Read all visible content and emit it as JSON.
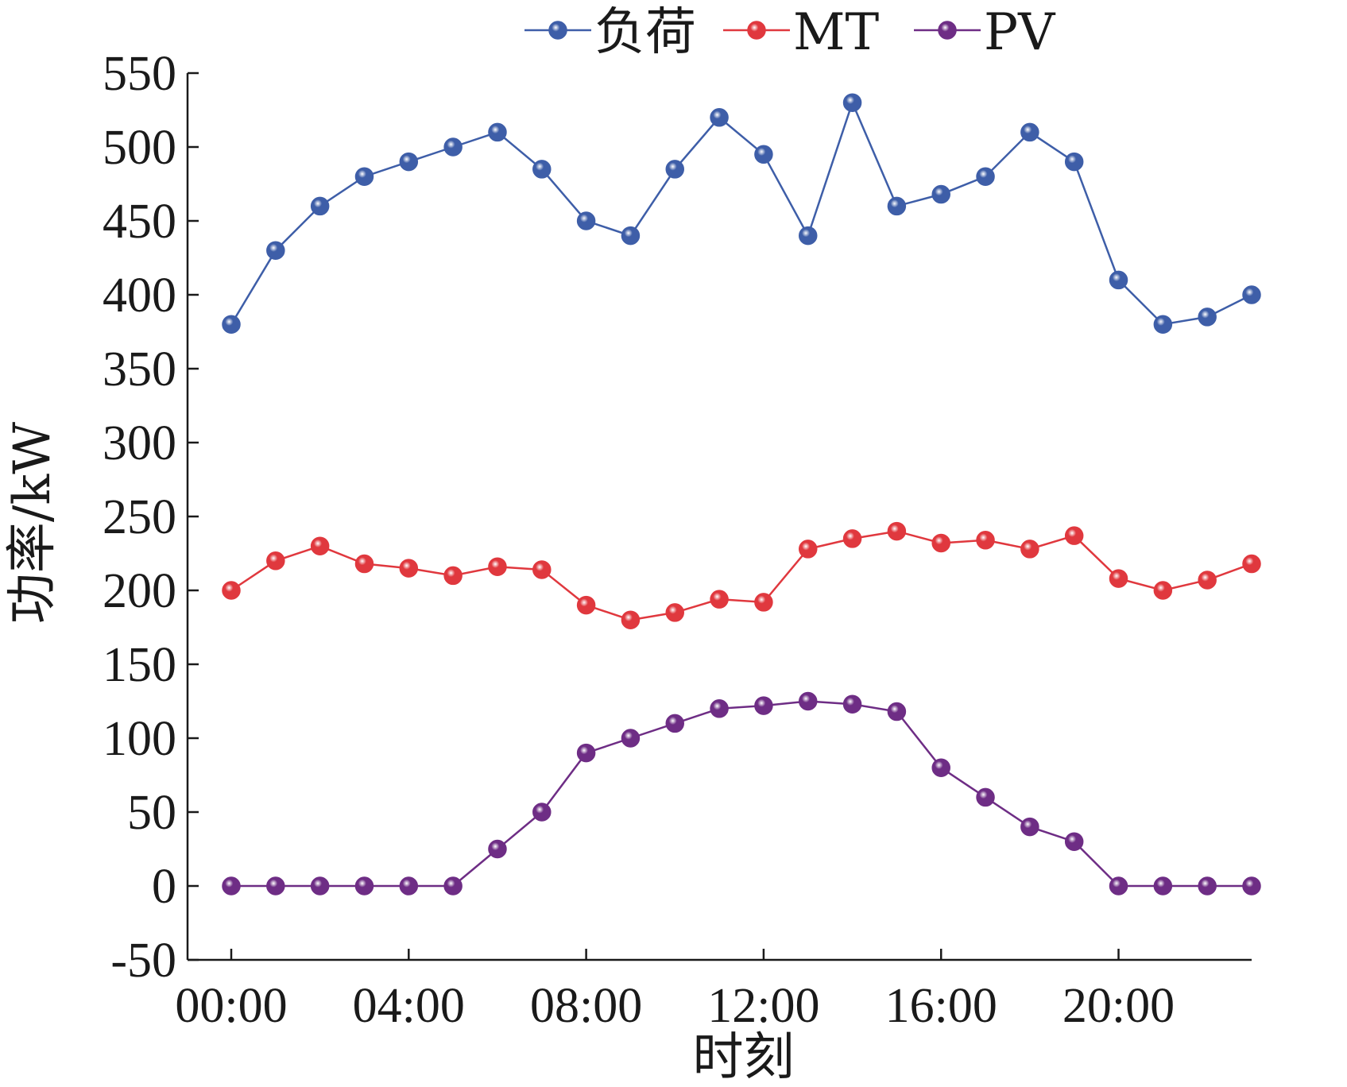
{
  "chart_data": {
    "type": "line",
    "title": "",
    "xlabel": "时刻",
    "ylabel": "功率/kW",
    "ylim": [
      -50,
      550
    ],
    "yticks": [
      -50,
      0,
      50,
      100,
      150,
      200,
      250,
      300,
      350,
      400,
      450,
      500,
      550
    ],
    "xlim": [
      0,
      23
    ],
    "xticks": [
      0,
      4,
      8,
      12,
      16,
      20
    ],
    "xtick_labels": [
      "00:00",
      "04:00",
      "08:00",
      "12:00",
      "16:00",
      "20:00"
    ],
    "x": [
      0,
      1,
      2,
      3,
      4,
      5,
      6,
      7,
      8,
      9,
      10,
      11,
      12,
      13,
      14,
      15,
      16,
      17,
      18,
      19,
      20,
      21,
      22,
      23
    ],
    "grid": false,
    "legend_position": "top",
    "series": [
      {
        "name": "负荷",
        "color": "#3e5ea8",
        "marker": "circle",
        "values": [
          380,
          430,
          460,
          480,
          490,
          500,
          510,
          485,
          450,
          440,
          485,
          520,
          495,
          440,
          530,
          460,
          468,
          480,
          510,
          490,
          410,
          380,
          385,
          400
        ]
      },
      {
        "name": "MT",
        "color": "#e0383e",
        "marker": "circle",
        "values": [
          200,
          220,
          230,
          218,
          215,
          210,
          216,
          214,
          190,
          180,
          185,
          194,
          192,
          228,
          235,
          240,
          232,
          234,
          228,
          237,
          208,
          200,
          207,
          218
        ]
      },
      {
        "name": "PV",
        "color": "#6e2d85",
        "marker": "circle",
        "values": [
          0,
          0,
          0,
          0,
          0,
          0,
          25,
          50,
          90,
          100,
          110,
          120,
          122,
          125,
          123,
          118,
          80,
          60,
          40,
          30,
          0,
          0,
          0,
          0
        ]
      }
    ]
  }
}
